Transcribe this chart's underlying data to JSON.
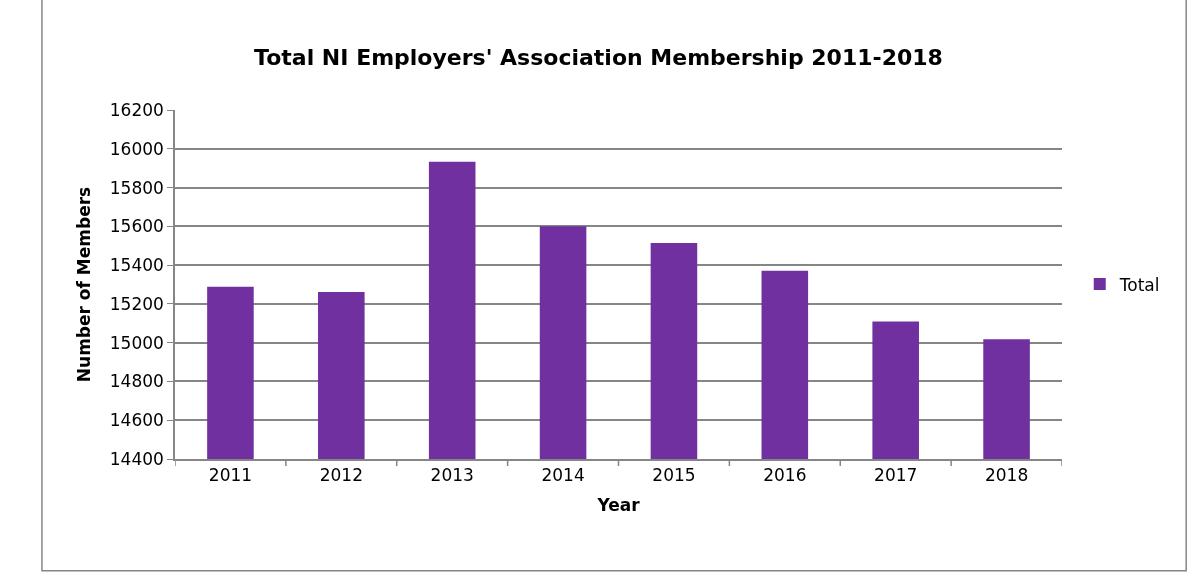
{
  "chart_data": {
    "type": "bar",
    "title": "Total NI Employers' Association Membership 2011-2018",
    "xlabel": "Year",
    "ylabel": "Number of Members",
    "categories": [
      "2011",
      "2012",
      "2013",
      "2014",
      "2015",
      "2016",
      "2017",
      "2018"
    ],
    "series": [
      {
        "name": "Total",
        "color": "#7030a0",
        "values": [
          15289,
          15261,
          15933,
          15600,
          15514,
          15371,
          15109,
          15017
        ]
      }
    ],
    "ylim": [
      14400,
      16200
    ],
    "yticks": [
      14400,
      14600,
      14800,
      15000,
      15200,
      15400,
      15600,
      15800,
      16000,
      16200
    ],
    "grid": "y",
    "legend": "right"
  }
}
